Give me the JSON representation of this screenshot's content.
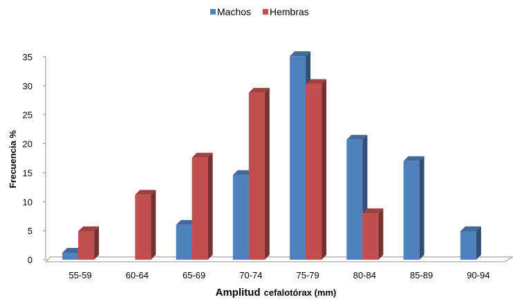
{
  "chart_data": {
    "type": "bar",
    "title": "",
    "xlabel": "Amplitud",
    "xlabel_small": "cefalotórax (mm)",
    "ylabel": "Frecuencia %",
    "categories": [
      "55-59",
      "60-64",
      "65-69",
      "70-74",
      "75-79",
      "80-84",
      "85-89",
      "90-94"
    ],
    "series": [
      {
        "name": "Machos",
        "color": "#4F81BD",
        "values": [
          1.2,
          0,
          6.0,
          14.6,
          35.1,
          20.7,
          17.0,
          4.9
        ]
      },
      {
        "name": "Hembras",
        "color": "#C0504D",
        "values": [
          4.9,
          11.2,
          17.6,
          28.8,
          30.3,
          8.0,
          0,
          0
        ]
      }
    ],
    "ylim": [
      0,
      35
    ],
    "yticks": [
      0,
      5,
      10,
      15,
      20,
      25,
      30,
      35
    ],
    "grid": false,
    "legend_position": "top-center",
    "style": "3d-column"
  }
}
